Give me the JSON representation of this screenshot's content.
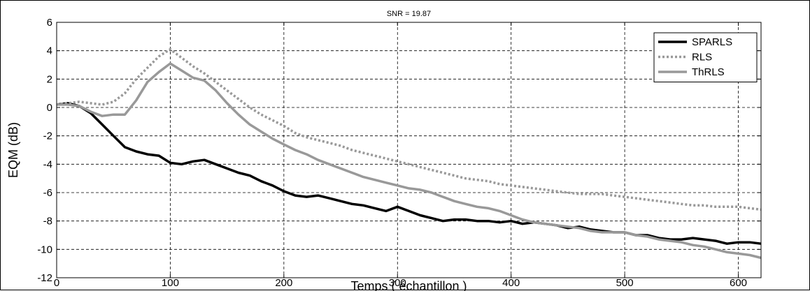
{
  "chart_data": {
    "type": "line",
    "title": "SNR = 19.87",
    "xlabel": "Temps ( échantillon )",
    "ylabel": "EQM (dB)",
    "xlim": [
      0,
      620
    ],
    "ylim": [
      -12,
      6
    ],
    "xticks": [
      0,
      100,
      200,
      300,
      400,
      500,
      600
    ],
    "yticks": [
      -12,
      -10,
      -8,
      -6,
      -4,
      -2,
      0,
      2,
      4,
      6
    ],
    "grid": true,
    "legend_position": "top-right",
    "series": [
      {
        "name": "SPARLS",
        "color": "#000000",
        "style": "solid",
        "x": [
          0,
          10,
          20,
          30,
          40,
          50,
          60,
          70,
          80,
          90,
          100,
          110,
          120,
          130,
          140,
          150,
          160,
          170,
          180,
          190,
          200,
          210,
          220,
          230,
          240,
          250,
          260,
          270,
          280,
          290,
          300,
          310,
          320,
          330,
          340,
          350,
          360,
          370,
          380,
          390,
          400,
          410,
          420,
          430,
          440,
          450,
          460,
          470,
          480,
          490,
          500,
          510,
          520,
          530,
          540,
          550,
          560,
          570,
          580,
          590,
          600,
          610,
          620
        ],
        "y": [
          0.2,
          0.3,
          0.1,
          -0.4,
          -1.2,
          -2.0,
          -2.8,
          -3.1,
          -3.3,
          -3.4,
          -3.9,
          -4.0,
          -3.8,
          -3.7,
          -4.0,
          -4.3,
          -4.6,
          -4.8,
          -5.2,
          -5.5,
          -5.9,
          -6.2,
          -6.3,
          -6.2,
          -6.4,
          -6.6,
          -6.8,
          -6.9,
          -7.1,
          -7.3,
          -7.0,
          -7.3,
          -7.6,
          -7.8,
          -8.0,
          -7.9,
          -7.9,
          -8.0,
          -8.0,
          -8.1,
          -8.0,
          -8.2,
          -8.1,
          -8.2,
          -8.3,
          -8.5,
          -8.4,
          -8.6,
          -8.7,
          -8.8,
          -8.8,
          -9.0,
          -9.0,
          -9.2,
          -9.3,
          -9.3,
          -9.2,
          -9.3,
          -9.4,
          -9.6,
          -9.5,
          -9.5,
          -9.6
        ]
      },
      {
        "name": "RLS",
        "color": "#999999",
        "style": "dotted",
        "x": [
          0,
          10,
          20,
          30,
          40,
          50,
          60,
          70,
          80,
          90,
          100,
          110,
          120,
          130,
          140,
          150,
          160,
          170,
          180,
          190,
          200,
          210,
          220,
          230,
          240,
          250,
          260,
          270,
          280,
          290,
          300,
          310,
          320,
          330,
          340,
          350,
          360,
          370,
          380,
          390,
          400,
          410,
          420,
          430,
          440,
          450,
          460,
          470,
          480,
          490,
          500,
          510,
          520,
          530,
          540,
          550,
          560,
          570,
          580,
          590,
          600,
          610,
          620
        ],
        "y": [
          0.2,
          0.3,
          0.4,
          0.3,
          0.2,
          0.4,
          1.0,
          2.0,
          2.8,
          3.6,
          4.1,
          3.5,
          2.9,
          2.4,
          1.8,
          1.2,
          0.6,
          0.0,
          -0.5,
          -0.9,
          -1.3,
          -1.8,
          -2.1,
          -2.3,
          -2.5,
          -2.7,
          -3.0,
          -3.2,
          -3.4,
          -3.6,
          -3.8,
          -4.0,
          -4.2,
          -4.4,
          -4.6,
          -4.8,
          -5.0,
          -5.1,
          -5.2,
          -5.4,
          -5.5,
          -5.6,
          -5.7,
          -5.8,
          -5.9,
          -6.0,
          -6.1,
          -6.1,
          -6.1,
          -6.2,
          -6.3,
          -6.4,
          -6.5,
          -6.6,
          -6.7,
          -6.8,
          -6.9,
          -6.9,
          -7.0,
          -7.0,
          -7.0,
          -7.1,
          -7.2
        ]
      },
      {
        "name": "ThRLS",
        "color": "#999999",
        "style": "solid",
        "x": [
          0,
          10,
          20,
          30,
          40,
          50,
          60,
          70,
          80,
          90,
          100,
          110,
          120,
          130,
          140,
          150,
          160,
          170,
          180,
          190,
          200,
          210,
          220,
          230,
          240,
          250,
          260,
          270,
          280,
          290,
          300,
          310,
          320,
          330,
          340,
          350,
          360,
          370,
          380,
          390,
          400,
          410,
          420,
          430,
          440,
          450,
          460,
          470,
          480,
          490,
          500,
          510,
          520,
          530,
          540,
          550,
          560,
          570,
          580,
          590,
          600,
          610,
          620
        ],
        "y": [
          0.2,
          0.2,
          0.1,
          -0.3,
          -0.6,
          -0.5,
          -0.5,
          0.5,
          1.8,
          2.5,
          3.1,
          2.6,
          2.1,
          1.9,
          1.2,
          0.3,
          -0.5,
          -1.2,
          -1.7,
          -2.2,
          -2.6,
          -3.0,
          -3.3,
          -3.7,
          -4.0,
          -4.3,
          -4.6,
          -4.9,
          -5.1,
          -5.3,
          -5.5,
          -5.7,
          -5.8,
          -6.0,
          -6.3,
          -6.6,
          -6.8,
          -7.0,
          -7.1,
          -7.3,
          -7.6,
          -7.9,
          -8.1,
          -8.2,
          -8.3,
          -8.4,
          -8.5,
          -8.7,
          -8.8,
          -8.8,
          -8.8,
          -9.0,
          -9.1,
          -9.3,
          -9.4,
          -9.5,
          -9.7,
          -9.8,
          -10.0,
          -10.2,
          -10.3,
          -10.4,
          -10.6
        ]
      }
    ]
  }
}
